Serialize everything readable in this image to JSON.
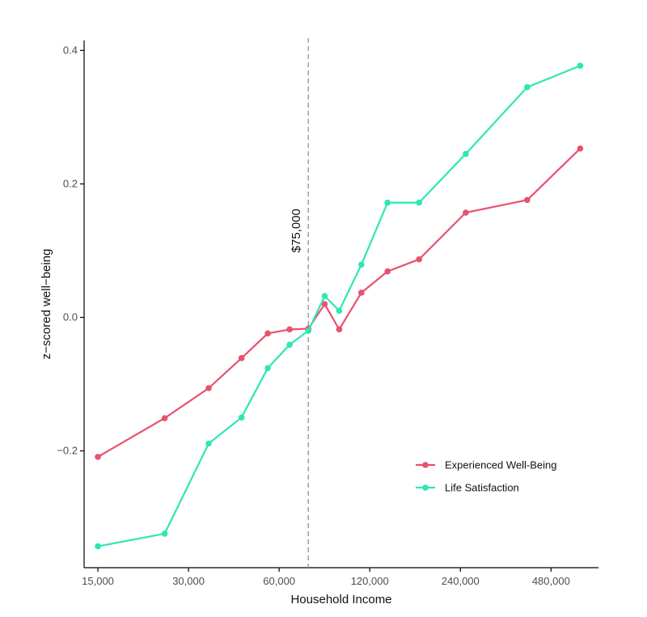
{
  "chart_data": {
    "type": "line",
    "xlabel": "Household Income",
    "ylabel": "z−scored well−being",
    "x_scale": "log",
    "xlim": [
      13500,
      690000
    ],
    "ylim": [
      -0.375,
      0.415
    ],
    "x_ticks": [
      15000,
      30000,
      60000,
      120000,
      240000,
      480000
    ],
    "x_tick_labels": [
      "15,000",
      "30,000",
      "60,000",
      "120,000",
      "240,000",
      "480,000"
    ],
    "y_ticks": [
      -0.2,
      0.0,
      0.2,
      0.4
    ],
    "y_tick_labels": [
      "−0.2",
      "0.0",
      "0.2",
      "0.4"
    ],
    "grid": false,
    "legend_position": "bottom-right",
    "annotation": {
      "text": "$75,000",
      "x": 75000
    },
    "series": [
      {
        "name": "Experienced Well-Being",
        "color": "#e8516f",
        "points": [
          [
            15000,
            -0.209
          ],
          [
            25000,
            -0.151
          ],
          [
            35000,
            -0.106
          ],
          [
            45000,
            -0.061
          ],
          [
            55000,
            -0.024
          ],
          [
            65000,
            -0.018
          ],
          [
            75000,
            -0.017
          ],
          [
            85000,
            0.02
          ],
          [
            95000,
            -0.018
          ],
          [
            112500,
            0.037
          ],
          [
            137500,
            0.069
          ],
          [
            175000,
            0.087
          ],
          [
            250000,
            0.157
          ],
          [
            400000,
            0.176
          ],
          [
            600000,
            0.253
          ]
        ]
      },
      {
        "name": "Life Satisfaction",
        "color": "#2fe6b4",
        "points": [
          [
            15000,
            -0.343
          ],
          [
            25000,
            -0.324
          ],
          [
            35000,
            -0.189
          ],
          [
            45000,
            -0.15
          ],
          [
            55000,
            -0.076
          ],
          [
            65000,
            -0.041
          ],
          [
            75000,
            -0.02
          ],
          [
            85000,
            0.032
          ],
          [
            95000,
            0.01
          ],
          [
            112500,
            0.079
          ],
          [
            137500,
            0.172
          ],
          [
            175000,
            0.172
          ],
          [
            250000,
            0.245
          ],
          [
            400000,
            0.345
          ],
          [
            600000,
            0.377
          ]
        ]
      }
    ]
  }
}
